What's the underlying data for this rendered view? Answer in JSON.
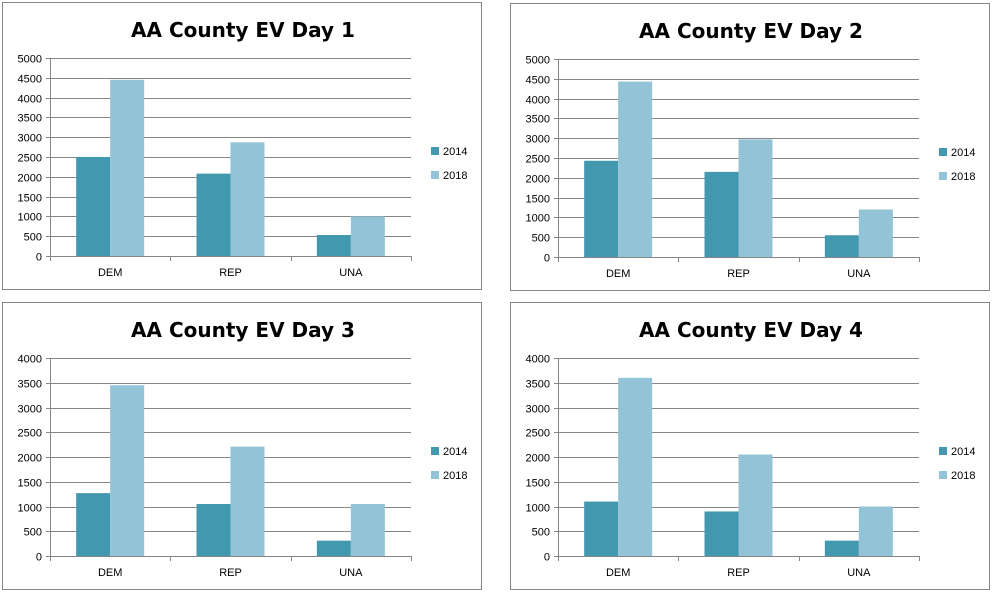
{
  "colors": {
    "s2014": "#4198AF",
    "s2018": "#93C3D6",
    "grid": "#868686"
  },
  "chart_data": [
    {
      "type": "bar",
      "title": "AA County EV Day 1",
      "categories": [
        "DEM",
        "REP",
        "UNA"
      ],
      "series": [
        {
          "name": "2014",
          "values": [
            2500,
            2080,
            530
          ]
        },
        {
          "name": "2018",
          "values": [
            4450,
            2870,
            1000
          ]
        }
      ],
      "ylim": [
        0,
        5000
      ],
      "yticks": [
        "0",
        "500",
        "1000",
        "1500",
        "2000",
        "2500",
        "3000",
        "3500",
        "4000",
        "4500",
        "5000"
      ],
      "grid": true,
      "legend": "right"
    },
    {
      "type": "bar",
      "title": "AA County EV Day 2",
      "categories": [
        "DEM",
        "REP",
        "UNA"
      ],
      "series": [
        {
          "name": "2014",
          "values": [
            2430,
            2150,
            550
          ]
        },
        {
          "name": "2018",
          "values": [
            4430,
            2970,
            1200
          ]
        }
      ],
      "ylim": [
        0,
        5000
      ],
      "yticks": [
        "0",
        "500",
        "1000",
        "1500",
        "2000",
        "2500",
        "3000",
        "3500",
        "4000",
        "4500",
        "5000"
      ],
      "grid": true,
      "legend": "right"
    },
    {
      "type": "bar",
      "title": "AA County EV Day 3",
      "categories": [
        "DEM",
        "REP",
        "UNA"
      ],
      "series": [
        {
          "name": "2014",
          "values": [
            1270,
            1050,
            310
          ]
        },
        {
          "name": "2018",
          "values": [
            3450,
            2210,
            1050
          ]
        }
      ],
      "ylim": [
        0,
        4000
      ],
      "yticks": [
        "0",
        "500",
        "1000",
        "1500",
        "2000",
        "2500",
        "3000",
        "3500",
        "4000"
      ],
      "grid": true,
      "legend": "right"
    },
    {
      "type": "bar",
      "title": "AA County EV Day 4",
      "categories": [
        "DEM",
        "REP",
        "UNA"
      ],
      "series": [
        {
          "name": "2014",
          "values": [
            1100,
            900,
            310
          ]
        },
        {
          "name": "2018",
          "values": [
            3600,
            2050,
            1000
          ]
        }
      ],
      "ylim": [
        0,
        4000
      ],
      "yticks": [
        "0",
        "500",
        "1000",
        "1500",
        "2000",
        "2500",
        "3000",
        "3500",
        "4000"
      ],
      "grid": true,
      "legend": "right"
    }
  ]
}
